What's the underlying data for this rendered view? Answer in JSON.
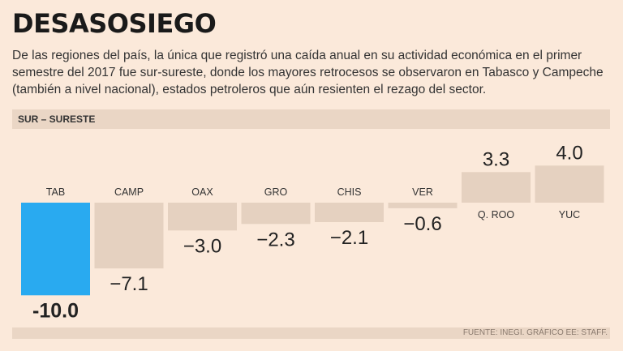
{
  "header": {
    "title": "DESASOSIEGO",
    "intro": "De las regiones del país, la única que registró una caída anual en su actividad económica en el primer semestre del 2017 fue sur-sureste, donde los mayores retrocesos se observaron en Tabasco y Campeche (también a nivel nacional), estados petroleros que aún resienten el rezago del sector."
  },
  "section": {
    "label": "SUR – SURESTE"
  },
  "footer": {
    "source": "FUENTE: INEGI. GRÁFICO EE: STAFF."
  },
  "colors": {
    "highlight": "#29aaf0",
    "bar": "#e5d1c0",
    "background": "#fbe9da"
  },
  "chart_data": {
    "type": "bar",
    "categories": [
      "TAB",
      "CAMP",
      "OAX",
      "GRO",
      "CHIS",
      "VER",
      "Q. ROO",
      "YUC"
    ],
    "values": [
      -10.0,
      -7.1,
      -3.0,
      -2.3,
      -2.1,
      -0.6,
      3.3,
      4.0
    ],
    "value_labels": [
      "-10.0",
      "−7.1",
      "−3.0",
      "−2.3",
      "−2.1",
      "−0.6",
      "3.3",
      "4.0"
    ],
    "highlight": "TAB",
    "title": "",
    "xlabel": "",
    "ylabel": "",
    "grid": false,
    "legend": "none"
  }
}
